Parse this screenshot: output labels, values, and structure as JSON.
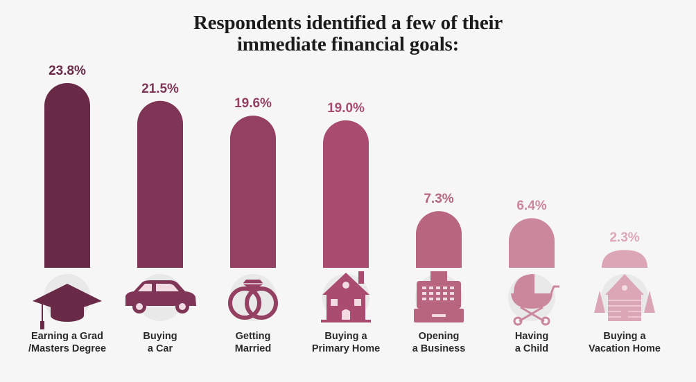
{
  "title": {
    "line1": "Respondents identified a few of their",
    "line2": "immediate financial goals:"
  },
  "colors": {
    "background": "#f6f6f6",
    "icon_circle": "#e9e9e9",
    "label_text": "#2a2a2a"
  },
  "chart_data": {
    "type": "bar",
    "title": "Respondents identified a few of their immediate financial goals:",
    "xlabel": "",
    "ylabel": "",
    "ylim": [
      0,
      23.8
    ],
    "grid": false,
    "categories": [
      [
        "Earning a Grad",
        "/Masters Degree"
      ],
      [
        "Buying",
        "a Car"
      ],
      [
        "Getting",
        "Married"
      ],
      [
        "Buying a",
        "Primary Home"
      ],
      [
        "Opening",
        "a Business"
      ],
      [
        "Having",
        "a Child"
      ],
      [
        "Buying a",
        "Vacation Home"
      ]
    ],
    "values": [
      23.8,
      21.5,
      19.6,
      19.0,
      7.3,
      6.4,
      2.3
    ],
    "value_labels": [
      "23.8%",
      "21.5%",
      "19.6%",
      "19.0%",
      "7.3%",
      "6.4%",
      "2.3%"
    ],
    "bar_colors": [
      "#682a47",
      "#7e3556",
      "#934062",
      "#a94c70",
      "#b8657f",
      "#cb879c",
      "#dba6b5"
    ],
    "icons": [
      "graduation-cap-icon",
      "car-icon",
      "wedding-rings-icon",
      "house-icon",
      "cash-register-icon",
      "baby-stroller-icon",
      "log-cabin-icon"
    ]
  }
}
